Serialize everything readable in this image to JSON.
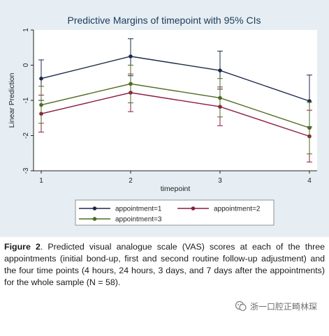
{
  "colors": {
    "panel_bg": "#e6eef3",
    "plot_bg": "#ffffff",
    "title": "#1a3a5c",
    "series": [
      "#1b2a48",
      "#8c1b3f",
      "#4e6a22"
    ]
  },
  "chart_data": {
    "type": "line",
    "title": "Predictive Margins of timepoint with 95% CIs",
    "xlabel": "timepoint",
    "ylabel": "Linear Prediction",
    "x": [
      1,
      2,
      3,
      4
    ],
    "xticks": [
      "1",
      "2",
      "3",
      "4"
    ],
    "yticks": [
      "1",
      "0",
      "-1",
      "-2",
      "-3"
    ],
    "ylim": [
      -3,
      1
    ],
    "grid": false,
    "error_bars": "95% CI",
    "legend_position": "bottom",
    "series": [
      {
        "name": "appointment=1",
        "values": [
          -0.38,
          0.25,
          -0.15,
          -1.02
        ],
        "ci_lower": [
          -1.0,
          -0.3,
          -0.68,
          -1.75
        ],
        "ci_upper": [
          0.15,
          0.75,
          0.4,
          -0.28
        ]
      },
      {
        "name": "appointment=2",
        "values": [
          -1.38,
          -0.78,
          -1.18,
          -2.02
        ],
        "ci_lower": [
          -1.9,
          -1.32,
          -1.72,
          -2.75
        ],
        "ci_upper": [
          -0.85,
          -0.25,
          -0.62,
          -1.28
        ]
      },
      {
        "name": "appointment=3",
        "values": [
          -1.13,
          -0.53,
          -0.93,
          -1.78
        ],
        "ci_lower": [
          -1.65,
          -1.07,
          -1.47,
          -2.52
        ],
        "ci_upper": [
          -0.6,
          0.0,
          -0.38,
          -1.05
        ]
      }
    ]
  },
  "caption": {
    "label": "Figure 2",
    "text": ". Predicted visual analogue scale (VAS) scores at each of the three appointments (initial bond-up, first and second routine follow-up adjustment) and the four time points (4 hours, 24 hours, 3 days, and 7 days after the appointments) for the whole sample (N = 58)."
  },
  "watermark": {
    "text": "浙一口腔正畸林琛"
  }
}
